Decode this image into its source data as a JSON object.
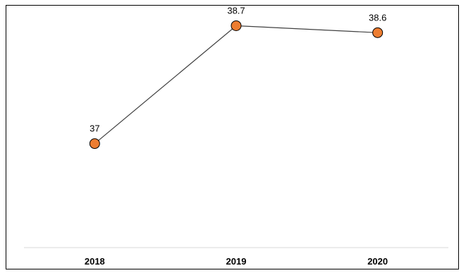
{
  "chart_data": {
    "type": "line",
    "categories": [
      "2018",
      "2019",
      "2020"
    ],
    "series": [
      {
        "values": [
          37,
          38.7,
          38.6
        ]
      }
    ],
    "data_labels": [
      "37",
      "38.7",
      "38.6"
    ],
    "ylim": [
      35.5,
      39
    ],
    "grid": false,
    "legend": "none",
    "colors": {
      "line": "#404040",
      "marker_fill": "#ED7D31",
      "marker_stroke": "#000000",
      "axis": "#d9d9d9"
    }
  }
}
